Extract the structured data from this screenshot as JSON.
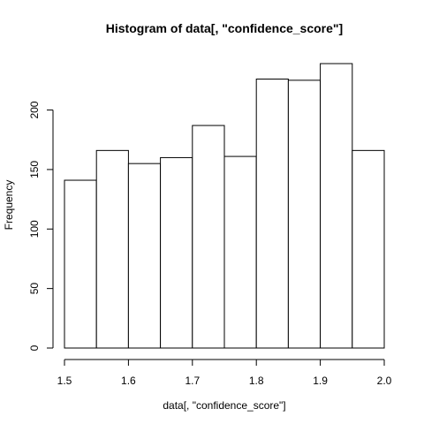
{
  "chart_data": {
    "type": "bar",
    "title": "Histogram of data[, \"confidence_score\"]",
    "xlabel": "data[, \"confidence_score\"]",
    "ylabel": "Frequency",
    "bins": [
      [
        1.5,
        1.55
      ],
      [
        1.55,
        1.6
      ],
      [
        1.6,
        1.65
      ],
      [
        1.65,
        1.7
      ],
      [
        1.7,
        1.75
      ],
      [
        1.75,
        1.8
      ],
      [
        1.8,
        1.85
      ],
      [
        1.85,
        1.9
      ],
      [
        1.9,
        1.95
      ],
      [
        1.95,
        2.0
      ]
    ],
    "values": [
      141,
      166,
      155,
      160,
      187,
      161,
      226,
      225,
      239,
      166
    ],
    "xlim": [
      1.5,
      2.0
    ],
    "ylim": [
      0,
      239
    ],
    "xticks": [
      "1.5",
      "1.6",
      "1.7",
      "1.8",
      "1.9",
      "2.0"
    ],
    "xtick_values": [
      1.5,
      1.6,
      1.7,
      1.8,
      1.9,
      2.0
    ],
    "yticks": [
      "0",
      "50",
      "100",
      "150",
      "200"
    ],
    "ytick_values": [
      0,
      50,
      100,
      150,
      200
    ],
    "grid": false,
    "legend": "none"
  }
}
